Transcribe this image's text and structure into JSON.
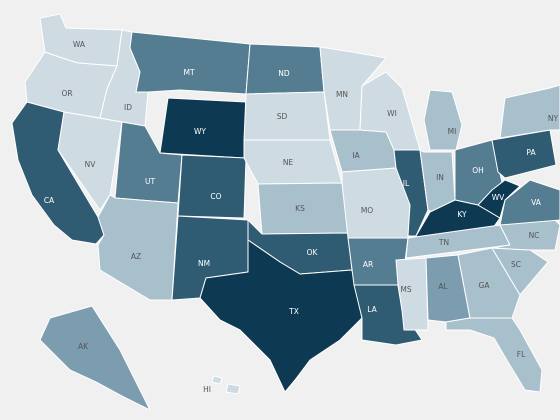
{
  "map": {
    "palette": {
      "c1": "#cfdbe3",
      "c2": "#a8bfcc",
      "c3": "#7c9db0",
      "c4": "#557d92",
      "c5": "#2f5c72",
      "c6": "#0d3a52",
      "background": "#f0f0f0",
      "border": "#ffffff",
      "label_light": "#555555",
      "label_dark": "#ffffff"
    },
    "states": [
      {
        "abbr": "WA",
        "shade": "c1"
      },
      {
        "abbr": "OR",
        "shade": "c1"
      },
      {
        "abbr": "CA",
        "shade": "c5"
      },
      {
        "abbr": "NV",
        "shade": "c1"
      },
      {
        "abbr": "ID",
        "shade": "c1"
      },
      {
        "abbr": "MT",
        "shade": "c4"
      },
      {
        "abbr": "WY",
        "shade": "c6"
      },
      {
        "abbr": "UT",
        "shade": "c4"
      },
      {
        "abbr": "AZ",
        "shade": "c2"
      },
      {
        "abbr": "CO",
        "shade": "c5"
      },
      {
        "abbr": "NM",
        "shade": "c5"
      },
      {
        "abbr": "ND",
        "shade": "c4"
      },
      {
        "abbr": "SD",
        "shade": "c1"
      },
      {
        "abbr": "NE",
        "shade": "c1"
      },
      {
        "abbr": "KS",
        "shade": "c2"
      },
      {
        "abbr": "OK",
        "shade": "c5"
      },
      {
        "abbr": "TX",
        "shade": "c6"
      },
      {
        "abbr": "MN",
        "shade": "c1"
      },
      {
        "abbr": "IA",
        "shade": "c2"
      },
      {
        "abbr": "MO",
        "shade": "c1"
      },
      {
        "abbr": "AR",
        "shade": "c4"
      },
      {
        "abbr": "LA",
        "shade": "c5"
      },
      {
        "abbr": "WI",
        "shade": "c1"
      },
      {
        "abbr": "IL",
        "shade": "c5"
      },
      {
        "abbr": "MI",
        "shade": "c2"
      },
      {
        "abbr": "IN",
        "shade": "c2"
      },
      {
        "abbr": "OH",
        "shade": "c4"
      },
      {
        "abbr": "KY",
        "shade": "c6"
      },
      {
        "abbr": "TN",
        "shade": "c2"
      },
      {
        "abbr": "MS",
        "shade": "c1"
      },
      {
        "abbr": "AL",
        "shade": "c3"
      },
      {
        "abbr": "GA",
        "shade": "c2"
      },
      {
        "abbr": "FL",
        "shade": "c2"
      },
      {
        "abbr": "SC",
        "shade": "c2"
      },
      {
        "abbr": "NC",
        "shade": "c2"
      },
      {
        "abbr": "VA",
        "shade": "c4"
      },
      {
        "abbr": "WV",
        "shade": "c6"
      },
      {
        "abbr": "PA",
        "shade": "c5"
      },
      {
        "abbr": "NY",
        "shade": "c2"
      },
      {
        "abbr": "AK",
        "shade": "c3"
      },
      {
        "abbr": "HI",
        "shade": "c1"
      }
    ]
  }
}
